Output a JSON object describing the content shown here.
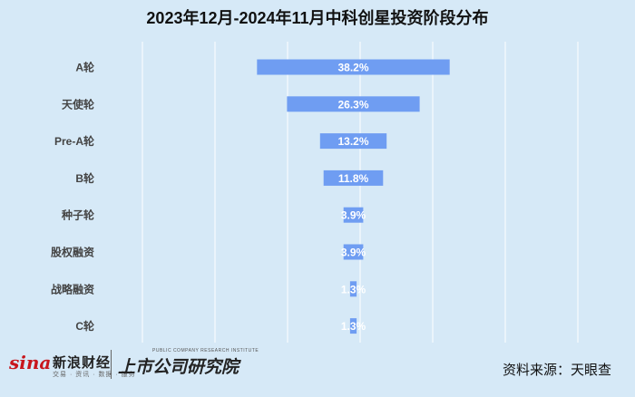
{
  "chart_data": {
    "type": "bar",
    "title": "2023年12月-2024年11月中科创星投资阶段分布",
    "categories": [
      "A轮",
      "天使轮",
      "Pre-A轮",
      "B轮",
      "种子轮",
      "股权融资",
      "战略融资",
      "C轮"
    ],
    "values": [
      38.2,
      26.3,
      13.2,
      11.8,
      3.9,
      3.9,
      1.3,
      1.3
    ],
    "labels": [
      "38.2%",
      "26.3%",
      "13.2%",
      "11.8%",
      "3.9%",
      "3.9%",
      "1.3%",
      "1.3%"
    ],
    "unit": "%",
    "orientation": "horizontal",
    "alignment": "centered",
    "grid": true,
    "legend": "none",
    "colors": {
      "bar": "#6f9df2",
      "background": "#d6e9f7",
      "grid": "#ffffff",
      "label": "#ffffff",
      "category_label": "#444444"
    }
  },
  "footer": {
    "sina_logo": "sina",
    "sina_name": "新浪财经",
    "sina_sub": "交易 · 资讯 · 数据 · 服务",
    "institute_name": "上市公司研究院",
    "institute_en": "PUBLIC COMPANY RESEARCH INSTITUTE",
    "source": "资料来源：天眼查"
  }
}
